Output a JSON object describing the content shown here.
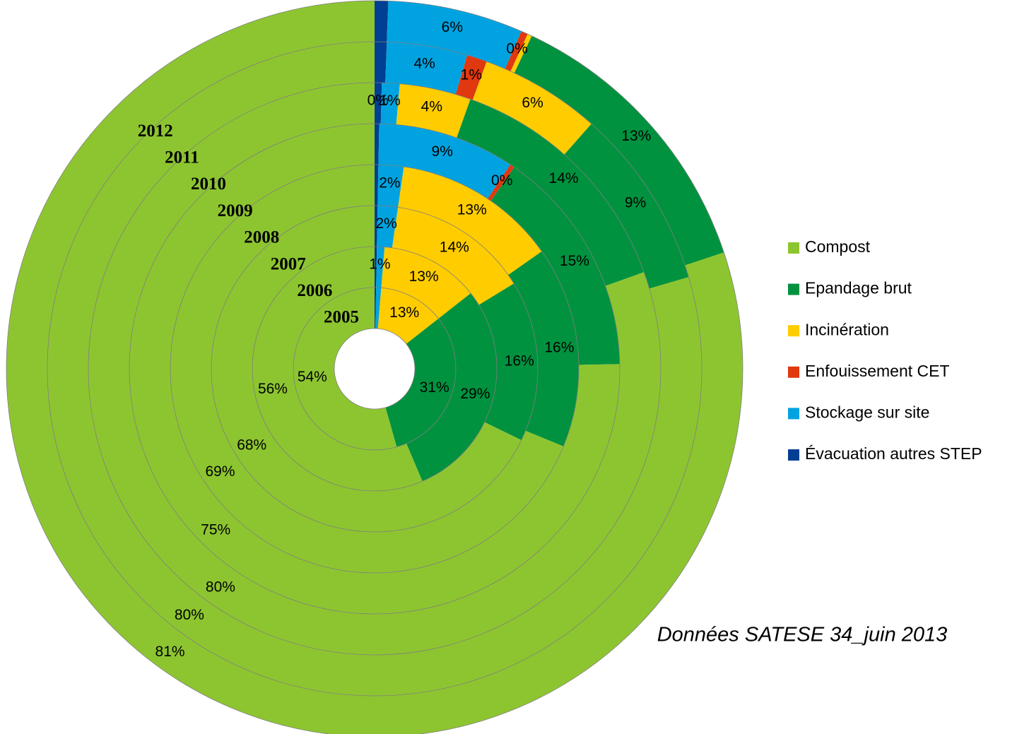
{
  "chart_data": {
    "type": "multi-donut",
    "categories": [
      "2005",
      "2006",
      "2007",
      "2008",
      "2009",
      "2010",
      "2011",
      "2012"
    ],
    "series": [
      {
        "name": "Compost",
        "color": "#8dc530",
        "values": [
          54,
          56,
          68,
          69,
          75,
          80,
          80,
          81
        ],
        "value_labels": [
          "54%",
          "56%",
          "68%",
          "69%",
          "75%",
          "80%",
          "80%",
          "81%"
        ]
      },
      {
        "name": "Epandage brut",
        "color": "#00923f",
        "values": [
          31,
          29,
          16,
          16,
          15,
          14,
          9,
          13
        ],
        "value_labels": [
          "31%",
          "29%",
          "16%",
          "16%",
          "15%",
          "14%",
          "9%",
          "13%"
        ]
      },
      {
        "name": "Incinération",
        "color": "#ffcc00",
        "values": [
          13,
          13,
          14,
          13,
          0,
          4,
          6,
          0.2
        ],
        "value_labels": [
          "13%",
          "13%",
          "14%",
          "13%",
          null,
          "4%",
          "6%",
          null
        ]
      },
      {
        "name": "Enfouissement CET",
        "color": "#e0380f",
        "values": [
          0,
          0,
          0,
          0,
          0.3,
          0,
          1,
          0.3
        ],
        "value_labels": [
          null,
          null,
          null,
          null,
          "0%",
          null,
          "1%",
          "0%"
        ]
      },
      {
        "name": "Stockage sur site",
        "color": "#00a3e0",
        "values": [
          1,
          1,
          2,
          2,
          9,
          1,
          4,
          6
        ],
        "value_labels": [
          null,
          "1%",
          "2%",
          "2%",
          "9%",
          "1%",
          "4%",
          "6%"
        ]
      },
      {
        "name": "Évacuation autres STEP",
        "color": "#003f91",
        "values": [
          0.3,
          0.3,
          0.3,
          0.3,
          0.3,
          0.4,
          0.6,
          0.6
        ],
        "value_labels": [
          null,
          null,
          null,
          null,
          null,
          "0%",
          null,
          null
        ]
      }
    ],
    "annotation": "Données SATESE 34_juin 2013"
  }
}
